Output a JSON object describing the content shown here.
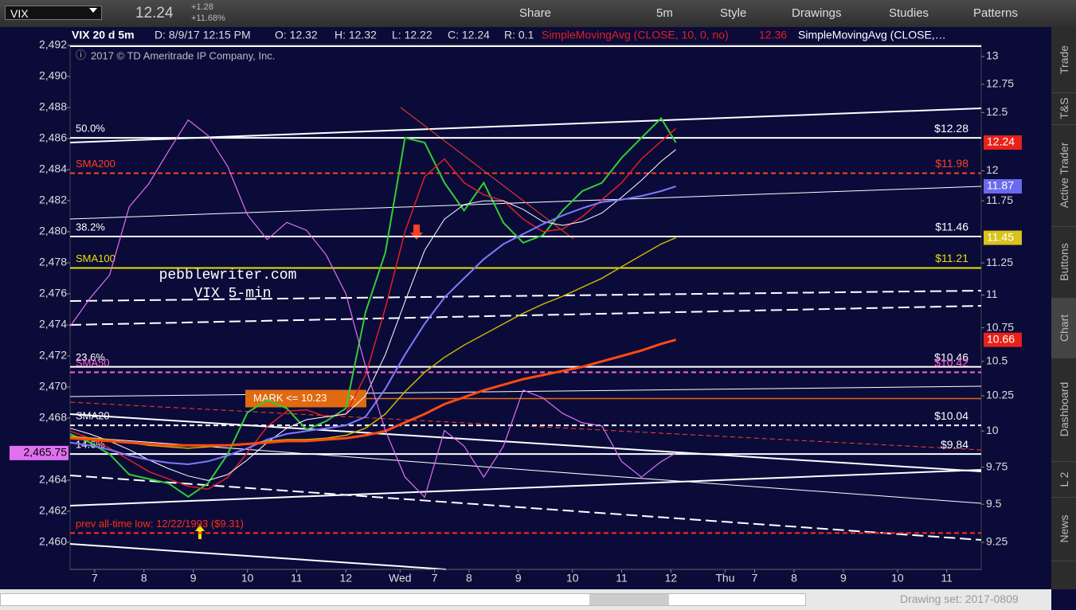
{
  "toolbar": {
    "symbol": "VIX",
    "last": "12.24",
    "change": "+1.28",
    "change_pct": "+11.68%",
    "buttons": [
      "Share",
      "5m",
      "Style",
      "Drawings",
      "Studies",
      "Patterns"
    ]
  },
  "sidebar_tabs": [
    "Trade",
    "T&S",
    "Active Trader",
    "Buttons",
    "Chart",
    "Dashboard",
    "L 2",
    "News"
  ],
  "chart_data": {
    "type": "line",
    "header": [
      "VIX 20 d 5m",
      "D: 8/9/17 12:15 PM",
      "O: 12.32",
      "H: 12.32",
      "L: 12.22",
      "C: 12.24",
      "R: 0.1"
    ],
    "study_1": "SimpleMovingAvg (CLOSE, 10, 0, no)",
    "study_2": "SimpleMovingAvg (CLOSE,…",
    "copyright": "2017 © TD Ameritrade IP Company, Inc.",
    "watermark": [
      "pebblewriter.com",
      "VIX 5-min"
    ],
    "alert": {
      "label": "MARK <= 10.23",
      "value": 10.23
    },
    "xlim": [
      0,
      18.5
    ],
    "xticks": [
      {
        "value": 0.5,
        "label": "7"
      },
      {
        "value": 1.5,
        "label": "8"
      },
      {
        "value": 2.5,
        "label": "9"
      },
      {
        "value": 3.6,
        "label": "10"
      },
      {
        "value": 4.6,
        "label": "11"
      },
      {
        "value": 5.6,
        "label": "12"
      },
      {
        "value": 6.7,
        "label": "Wed"
      },
      {
        "value": 7.4,
        "label": "7"
      },
      {
        "value": 8.1,
        "label": "8"
      },
      {
        "value": 9.1,
        "label": "9"
      },
      {
        "value": 10.2,
        "label": "10"
      },
      {
        "value": 11.2,
        "label": "11"
      },
      {
        "value": 12.2,
        "label": "12"
      },
      {
        "value": 13.3,
        "label": "Thu"
      },
      {
        "value": 13.9,
        "label": "7"
      },
      {
        "value": 14.7,
        "label": "8"
      },
      {
        "value": 15.7,
        "label": "9"
      },
      {
        "value": 16.8,
        "label": "10"
      },
      {
        "value": 17.8,
        "label": "11"
      }
    ],
    "ylim": [
      2460,
      2492
    ],
    "yticks": [
      {
        "value": 2492,
        "label": "2,492"
      },
      {
        "value": 2490,
        "label": "2,490"
      },
      {
        "value": 2488,
        "label": "2,488"
      },
      {
        "value": 2486,
        "label": "2,486"
      },
      {
        "value": 2484,
        "label": "2,484"
      },
      {
        "value": 2482,
        "label": "2,482"
      },
      {
        "value": 2480,
        "label": "2,480"
      },
      {
        "value": 2478,
        "label": "2,478"
      },
      {
        "value": 2476,
        "label": "2,476"
      },
      {
        "value": 2474,
        "label": "2,474"
      },
      {
        "value": 2472,
        "label": "2,472"
      },
      {
        "value": 2470,
        "label": "2,470"
      },
      {
        "value": 2468,
        "label": "2,468"
      },
      {
        "value": 2464,
        "label": "2,464"
      },
      {
        "value": 2462,
        "label": "2,462"
      },
      {
        "value": 2460,
        "label": "2,460"
      }
    ],
    "y2lim": [
      9.25,
      13
    ],
    "y2log": true,
    "y2ticks": [
      13,
      12.75,
      12.5,
      12,
      11.75,
      11.25,
      11,
      10.75,
      10.5,
      10.25,
      10,
      9.75,
      9.5,
      9.25
    ],
    "x": [
      0,
      0.4,
      0.8,
      1.2,
      1.6,
      2.0,
      2.4,
      2.8,
      3.2,
      3.6,
      4.0,
      4.4,
      4.8,
      5.2,
      5.6,
      6.0,
      6.4,
      6.8,
      7.2,
      7.6,
      8.0,
      8.4,
      8.8,
      9.2,
      9.6,
      10.0,
      10.4,
      10.8,
      11.2,
      11.6,
      12.0,
      12.3
    ],
    "series": [
      {
        "color": "#33cc33",
        "axis": "y2",
        "width": 2,
        "tag_color": "#e8211a",
        "values": [
          9.98,
          9.92,
          9.84,
          9.7,
          9.67,
          9.64,
          9.55,
          9.64,
          9.84,
          10.13,
          10.22,
          10.16,
          10.01,
          10.07,
          10.16,
          10.87,
          11.33,
          12.28,
          12.24,
          11.9,
          11.67,
          11.9,
          11.57,
          11.41,
          11.47,
          11.67,
          11.83,
          11.9,
          12.11,
          12.28,
          12.45,
          12.24
        ]
      },
      {
        "color": "#e02020",
        "axis": "y2",
        "width": 1.5,
        "values": [
          10.0,
          9.95,
          9.88,
          9.8,
          9.72,
          9.67,
          9.62,
          9.6,
          9.68,
          9.85,
          10.03,
          10.14,
          10.15,
          10.1,
          10.12,
          10.4,
          10.9,
          11.5,
          11.95,
          12.1,
          11.9,
          11.8,
          11.75,
          11.6,
          11.5,
          11.52,
          11.62,
          11.76,
          11.9,
          12.1,
          12.25,
          12.36
        ]
      },
      {
        "color": "#ffffff",
        "axis": "y2",
        "width": 1,
        "values": [
          10.02,
          9.98,
          9.93,
          9.87,
          9.8,
          9.74,
          9.69,
          9.66,
          9.7,
          9.8,
          9.92,
          10.02,
          10.08,
          10.1,
          10.12,
          10.25,
          10.55,
          10.95,
          11.35,
          11.6,
          11.72,
          11.75,
          11.75,
          11.68,
          11.58,
          11.55,
          11.58,
          11.65,
          11.78,
          11.92,
          12.08,
          12.18
        ]
      },
      {
        "color": "#7b7bff",
        "axis": "y2",
        "width": 2,
        "tag_color": "#6a6af0",
        "values": [
          9.92,
          9.9,
          9.87,
          9.83,
          9.8,
          9.78,
          9.77,
          9.79,
          9.83,
          9.88,
          9.94,
          9.98,
          10.0,
          10.02,
          10.04,
          10.1,
          10.3,
          10.55,
          10.78,
          10.98,
          11.13,
          11.28,
          11.4,
          11.48,
          11.56,
          11.63,
          11.69,
          11.74,
          11.76,
          11.79,
          11.83,
          11.87
        ]
      },
      {
        "color": "#c8b400",
        "axis": "y2",
        "width": 1.5,
        "tag_color": "#d9c21a",
        "values": [
          9.96,
          9.95,
          9.94,
          9.92,
          9.9,
          9.89,
          9.88,
          9.89,
          9.9,
          9.91,
          9.93,
          9.94,
          9.94,
          9.95,
          9.97,
          10.02,
          10.12,
          10.28,
          10.42,
          10.53,
          10.62,
          10.7,
          10.78,
          10.86,
          10.93,
          10.99,
          11.06,
          11.13,
          11.22,
          11.31,
          11.4,
          11.45
        ]
      },
      {
        "color": "#ff4a12",
        "axis": "y2",
        "width": 3,
        "tag_color": "#e8211a",
        "values": [
          9.95,
          9.94,
          9.93,
          9.92,
          9.91,
          9.9,
          9.9,
          9.9,
          9.9,
          9.91,
          9.92,
          9.93,
          9.93,
          9.94,
          9.95,
          9.97,
          10.0,
          10.06,
          10.12,
          10.19,
          10.24,
          10.29,
          10.33,
          10.37,
          10.4,
          10.43,
          10.46,
          10.5,
          10.54,
          10.58,
          10.63,
          10.66
        ]
      },
      {
        "color": "#e070f0",
        "axis": "y",
        "width": 1.2,
        "tag_color": "#e070f0",
        "values": [
          2473.9,
          2475.7,
          2477.2,
          2481.6,
          2483.1,
          2485.2,
          2487.2,
          2486.2,
          2484.2,
          2481.1,
          2479.5,
          2480.6,
          2480.1,
          2478.5,
          2476.0,
          2471.3,
          2467.2,
          2464.2,
          2462.9,
          2467.2,
          2466.2,
          2464.2,
          2466.2,
          2469.8,
          2469.3,
          2468.3,
          2467.7,
          2467.5,
          2465.2,
          2464.2,
          2465.2,
          2465.75
        ],
        "value_labels": [
          null,
          null,
          null,
          null,
          null,
          null,
          null,
          null,
          null,
          null,
          null,
          null,
          null,
          null,
          null,
          null,
          null,
          null,
          null,
          null,
          null,
          null,
          null,
          null,
          null,
          null,
          null,
          null,
          null,
          null,
          null,
          "2,465.75"
        ]
      }
    ],
    "levels": [
      {
        "name": "50.0%",
        "value": 12.28,
        "label": "$12.28",
        "color": "#ffffff"
      },
      {
        "name": "SMA200",
        "value": 11.98,
        "label": "$11.98",
        "color": "#ff4020",
        "dash": true
      },
      {
        "name": "38.2%",
        "value": 11.46,
        "label": "$11.46",
        "color": "#ffffff"
      },
      {
        "name": "SMA100",
        "value": 11.21,
        "label": "$11.21",
        "color": "#e8e000"
      },
      {
        "name": "23.6%",
        "value": 10.46,
        "label": "$10.46",
        "color": "#ffffff"
      },
      {
        "name": "SMA50",
        "value": 10.42,
        "label": "$10.42",
        "color": "#ff66cc",
        "dash": true
      },
      {
        "name": "SMA20",
        "value": 10.04,
        "label": "$10.04",
        "color": "#ffffff",
        "dash": true
      },
      {
        "name": "14.6%",
        "value": 9.84,
        "label": "$9.84",
        "color": "#ffffff"
      },
      {
        "name": "prev all-time low: 12/22/1993 ($9.31)",
        "value": 9.31,
        "color": "#ff3010",
        "dash": true
      }
    ]
  },
  "footer": {
    "drawing_set": "Drawing set: 2017-0809"
  }
}
